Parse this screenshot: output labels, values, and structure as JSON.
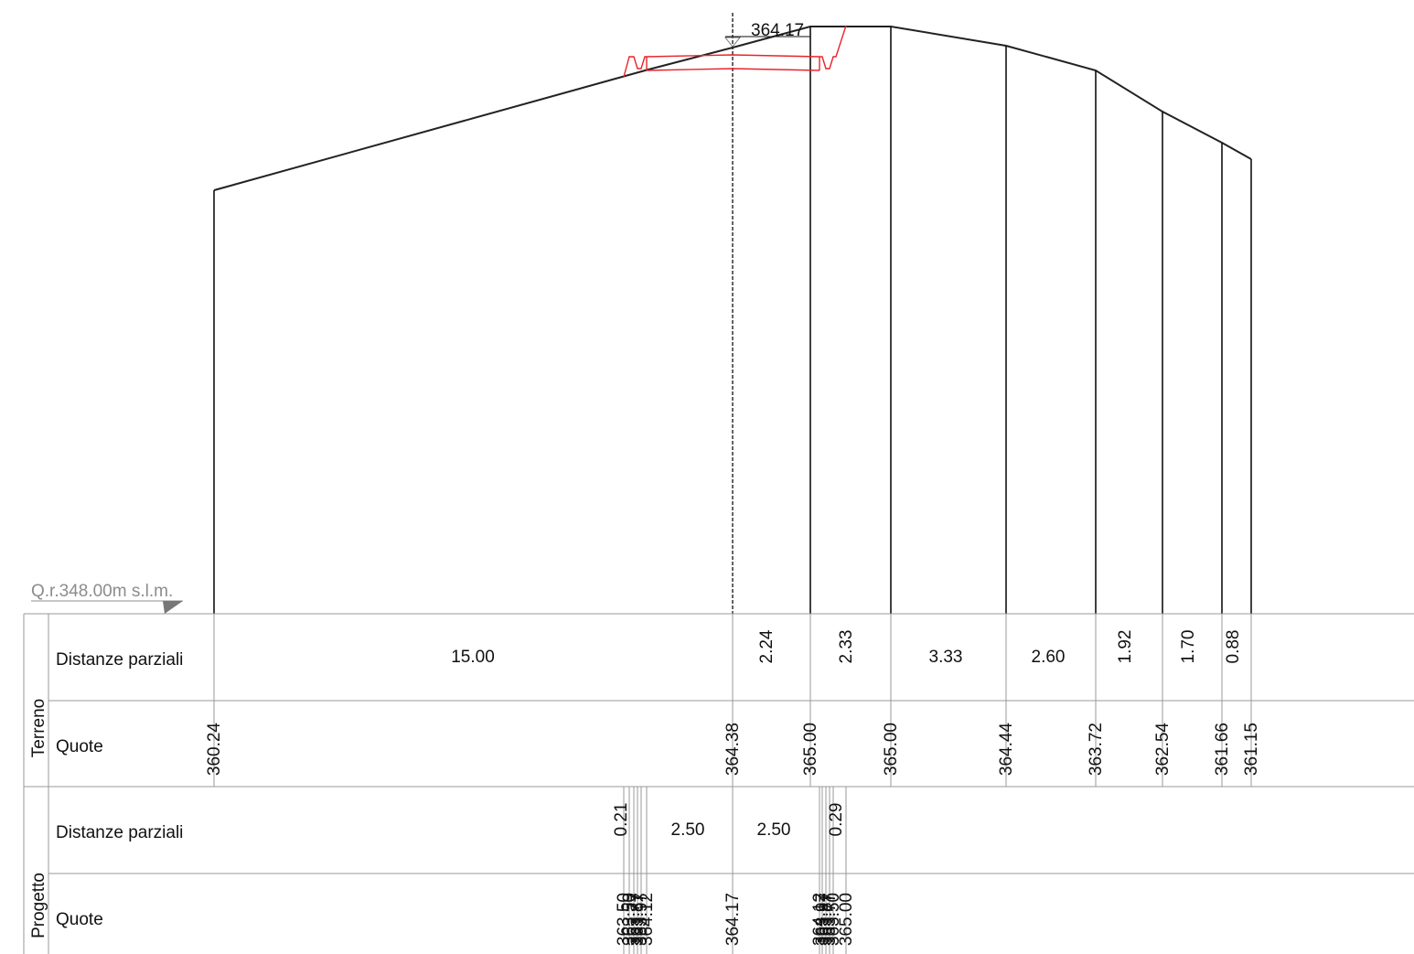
{
  "reference_datum": "Q.r.348.00m s.l.m.",
  "design_level_label": "364.17",
  "groups": {
    "terreno": "Terreno",
    "progetto": "Progetto"
  },
  "rows": {
    "distanze": "Distanze parziali",
    "quote": "Quote"
  },
  "terreno": {
    "partial_distances": [
      "15.00",
      "2.24",
      "2.33",
      "3.33",
      "2.60",
      "1.92",
      "1.70",
      "0.88"
    ],
    "elevations": [
      "360.24",
      "364.38",
      "365.00",
      "365.00",
      "364.44",
      "363.72",
      "362.54",
      "361.66",
      "361.15"
    ]
  },
  "progetto": {
    "partial_distances": [
      "0.21",
      "2.50",
      "2.50",
      "0.29"
    ],
    "elevation_centre": "364.17",
    "elevations_left_cluster": [
      "363.50",
      "363.50",
      "363.77",
      "363.87",
      "363.97",
      "364.12"
    ],
    "elevations_right_cluster": [
      "364.12",
      "363.97",
      "363.87",
      "363.77",
      "363.50",
      "365.00"
    ]
  },
  "colors": {
    "ground_line": "#222222",
    "project_section": "#e8242a",
    "grid": "#999999",
    "datum": "#8c8c8c"
  }
}
